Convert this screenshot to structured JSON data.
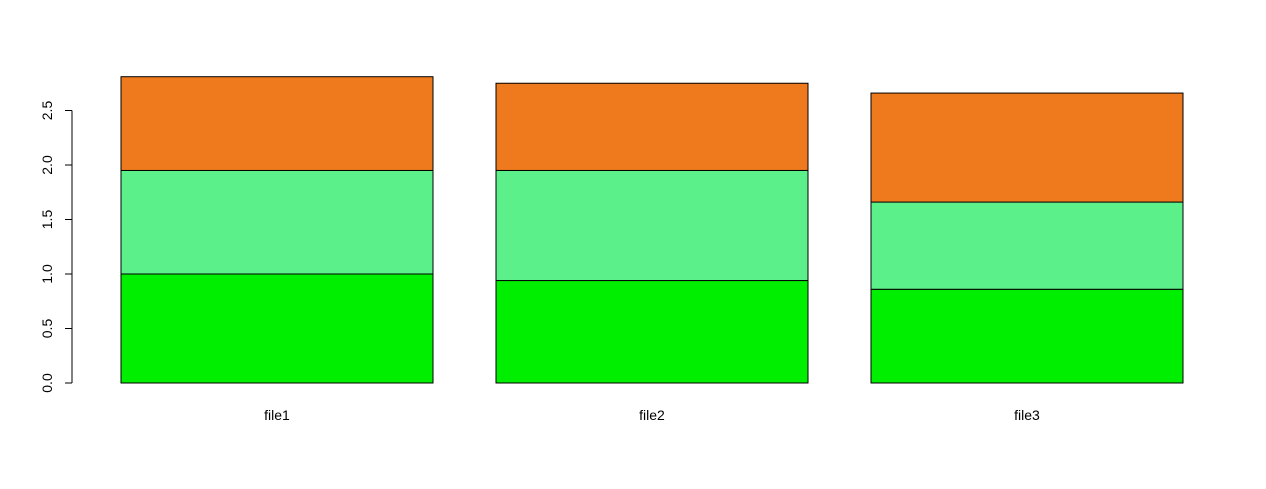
{
  "chart_data": {
    "type": "bar",
    "stacked": true,
    "title": "",
    "xlabel": "",
    "ylabel": "",
    "categories": [
      "file1",
      "file2",
      "file3"
    ],
    "series": [
      {
        "values": [
          1.0,
          0.94,
          0.86
        ],
        "color": "#00EE00"
      },
      {
        "values": [
          0.95,
          1.01,
          0.8
        ],
        "color": "#5CF08A"
      },
      {
        "values": [
          0.86,
          0.8,
          1.0
        ],
        "color": "#EE7A1D"
      }
    ],
    "ylim": [
      0,
      2.8
    ],
    "yticks": [
      "0.0",
      "0.5",
      "1.0",
      "1.5",
      "2.0",
      "2.5"
    ],
    "grid": false,
    "legend": "none"
  }
}
